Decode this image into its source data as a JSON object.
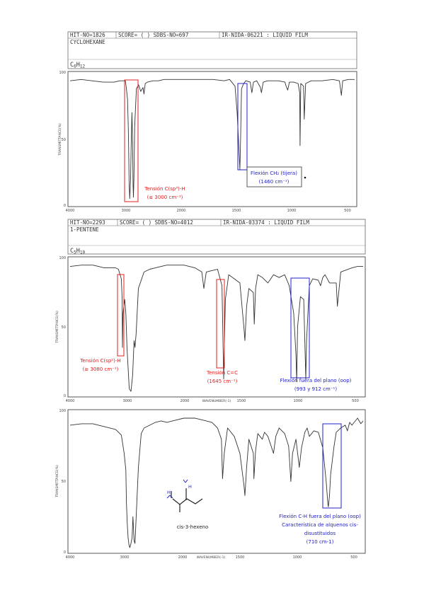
{
  "panels": [
    {
      "header": {
        "hit_no": "HIT-NO=1826",
        "score": "SCORE= ( ) SDBS-NO=697",
        "ir_no": "IR-NIDA-06221 : LIQUID FILM",
        "compound": "CYCLOHEXANE",
        "formula": "C6H12",
        "formula_main": "C",
        "formula_sub1": "6",
        "formula_h": "H",
        "formula_sub2": "12"
      },
      "y_ticks": [
        "100",
        "50",
        "0"
      ],
      "x_ticks": [
        "4000",
        "3000",
        "2000",
        "1500",
        "1000",
        "500"
      ],
      "ylabel": "TRANSMITTANCE(%)",
      "xlabel": "",
      "annotations": [
        {
          "lines": [
            "Tensión C(sp³)-H",
            "(≤ 3000 cm⁻¹)"
          ],
          "color": "#e02020"
        },
        {
          "lines": [
            "Flexión CH₂ (tijera)",
            "(1460 cm⁻¹)"
          ],
          "color": "#2020c8"
        }
      ]
    },
    {
      "header": {
        "hit_no": "HIT-NO=2293",
        "score": "SCORE= ( ) SDBS-NO=4012",
        "ir_no": "IR-NIDA-03374 : LIQUID FILM",
        "compound": "1-PENTENE",
        "formula": "C5H10",
        "formula_main": "C",
        "formula_sub1": "5",
        "formula_h": "H",
        "formula_sub2": "10"
      },
      "y_ticks": [
        "100",
        "50",
        "0"
      ],
      "x_ticks": [
        "4000",
        "3000",
        "2000",
        "1500",
        "1000",
        "500"
      ],
      "ylabel": "TRANSMITTANCE(%)",
      "xlabel": "WAVENUMBER(-1)",
      "annotations": [
        {
          "lines": [
            "Tensión C(sp²)-H",
            "(≥ 3080 cm⁻¹)"
          ],
          "color": "#e02020"
        },
        {
          "lines": [
            "Tensión C=C",
            "(1645 cm⁻¹)"
          ],
          "color": "#e02020"
        },
        {
          "lines": [
            "Flexión fuera del plano (oop)",
            "(993 y 912 cm⁻¹)"
          ],
          "color": "#2020c8"
        }
      ]
    },
    {
      "y_ticks": [
        "100",
        "50",
        "0"
      ],
      "x_ticks": [
        "4000",
        "3000",
        "2000",
        "1500",
        "1000",
        "500"
      ],
      "ylabel": "TRANSMITTANCE(%)",
      "xlabel": "WAVENUMBER(-1)",
      "molecule_label": "cis-3-hexeno",
      "annotations": [
        {
          "lines": [
            "Flexión C-H fuera del plano (oop)",
            "Característica de alquenos cis-",
            "disustituidos",
            "(710 cm-1)"
          ],
          "color": "#2020c8"
        }
      ]
    }
  ],
  "colors": {
    "trace": "#333333",
    "red_box": "#e02020",
    "blue_box": "#2020c8",
    "frame": "#555555"
  },
  "chart_data": [
    {
      "type": "line",
      "title": "CYCLOHEXANE",
      "xlabel": "",
      "ylabel": "TRANSMITTANCE(%)",
      "x_reversed": true,
      "xlim": [
        4000,
        400
      ],
      "ylim": [
        0,
        100
      ],
      "x_ticks": [
        4000,
        3000,
        2000,
        1500,
        1000,
        500
      ],
      "y_ticks": [
        0,
        50,
        100
      ],
      "series": [
        {
          "x": [
            4000,
            3800,
            3600,
            3400,
            3200,
            3100,
            3000,
            2980,
            2960,
            2945,
            2930,
            2920,
            2905,
            2895,
            2880,
            2870,
            2860,
            2853,
            2845,
            2830,
            2800,
            2760,
            2720,
            2680,
            2662,
            2640,
            2600,
            2500,
            2400,
            2300,
            2200,
            2100,
            2000,
            1900,
            1800,
            1700,
            1600,
            1550,
            1500,
            1480,
            1465,
            1455,
            1448,
            1440,
            1420,
            1400,
            1360,
            1345,
            1330,
            1300,
            1266,
            1257,
            1240,
            1200,
            1100,
            1040,
            1030,
            1015,
            1000,
            960,
            920,
            905,
            902,
            895,
            870,
            863,
            850,
            800,
            700,
            600,
            540,
            522,
            510,
            460,
            400
          ],
          "y": [
            94,
            95,
            94,
            93,
            93,
            94,
            94,
            88,
            80,
            55,
            15,
            5,
            20,
            45,
            70,
            50,
            15,
            6,
            20,
            60,
            88,
            91,
            86,
            89,
            84,
            92,
            93,
            94,
            94,
            95,
            95,
            95,
            95,
            95,
            95,
            95,
            94,
            95,
            90,
            70,
            45,
            27,
            50,
            88,
            92,
            94,
            93,
            85,
            93,
            94,
            89,
            85,
            93,
            94,
            94,
            93,
            90,
            87,
            93,
            93,
            92,
            85,
            45,
            92,
            90,
            65,
            92,
            94,
            94,
            95,
            94,
            83,
            94,
            95,
            95
          ]
        }
      ]
    },
    {
      "type": "line",
      "title": "1-PENTENE",
      "xlabel": "WAVENUMBER(-1)",
      "ylabel": "TRANSMITTANCE(%)",
      "x_reversed": true,
      "xlim": [
        4000,
        400
      ],
      "ylim": [
        0,
        100
      ],
      "x_ticks": [
        4000,
        3000,
        2000,
        1500,
        1000,
        500
      ],
      "y_ticks": [
        0,
        50,
        100
      ],
      "series": [
        {
          "x": [
            4000,
            3800,
            3600,
            3500,
            3400,
            3300,
            3200,
            3150,
            3100,
            3085,
            3080,
            3070,
            3040,
            3020,
            3000,
            2980,
            2960,
            2930,
            2900,
            2875,
            2860,
            2840,
            2800,
            2700,
            2600,
            2500,
            2400,
            2300,
            2200,
            2100,
            2000,
            1900,
            1840,
            1822,
            1800,
            1700,
            1660,
            1645,
            1630,
            1600,
            1500,
            1465,
            1455,
            1440,
            1420,
            1380,
            1372,
            1360,
            1340,
            1300,
            1250,
            1200,
            1150,
            1100,
            1060,
            1040,
            1020,
            1000,
            993,
            985,
            960,
            930,
            912,
            905,
            880,
            850,
            800,
            780,
            760,
            740,
            700,
            640,
            630,
            600,
            500,
            450,
            400
          ],
          "y": [
            94,
            95,
            95,
            94,
            93,
            93,
            93,
            92,
            85,
            70,
            35,
            60,
            70,
            60,
            35,
            20,
            5,
            3,
            15,
            40,
            35,
            45,
            78,
            90,
            92,
            93,
            94,
            95,
            95,
            95,
            95,
            93,
            90,
            78,
            90,
            92,
            80,
            12,
            70,
            88,
            82,
            50,
            40,
            65,
            78,
            75,
            52,
            78,
            88,
            86,
            82,
            88,
            86,
            88,
            80,
            70,
            60,
            30,
            10,
            50,
            72,
            70,
            12,
            40,
            80,
            85,
            84,
            80,
            86,
            88,
            82,
            82,
            65,
            90,
            93,
            94,
            94
          ]
        }
      ]
    },
    {
      "type": "line",
      "title": "",
      "xlabel": "WAVENUMBER(-1)",
      "ylabel": "TRANSMITTANCE(%)",
      "x_reversed": true,
      "xlim": [
        4000,
        400
      ],
      "ylim": [
        0,
        100
      ],
      "x_ticks": [
        4000,
        3000,
        2000,
        1500,
        1000,
        500
      ],
      "y_ticks": [
        0,
        50,
        100
      ],
      "series": [
        {
          "x": [
            4000,
            3800,
            3600,
            3500,
            3400,
            3300,
            3200,
            3100,
            3050,
            3020,
            3010,
            2995,
            2980,
            2965,
            2950,
            2930,
            2910,
            2895,
            2875,
            2860,
            2850,
            2800,
            2750,
            2700,
            2600,
            2500,
            2400,
            2300,
            2200,
            2100,
            2000,
            1900,
            1850,
            1800,
            1750,
            1700,
            1665,
            1655,
            1640,
            1610,
            1550,
            1500,
            1465,
            1455,
            1440,
            1420,
            1380,
            1375,
            1360,
            1340,
            1300,
            1280,
            1250,
            1200,
            1180,
            1150,
            1100,
            1065,
            1045,
            1030,
            1000,
            970,
            950,
            920,
            900,
            880,
            840,
            800,
            760,
            730,
            715,
            710,
            700,
            690,
            660,
            640,
            600,
            560,
            540,
            520,
            500,
            450,
            420,
            400
          ],
          "y": [
            90,
            91,
            91,
            90,
            89,
            88,
            87,
            83,
            70,
            58,
            35,
            20,
            10,
            5,
            3,
            6,
            10,
            25,
            8,
            6,
            15,
            60,
            84,
            88,
            90,
            92,
            93,
            92,
            93,
            94,
            95,
            95,
            94,
            93,
            92,
            88,
            80,
            52,
            70,
            88,
            82,
            70,
            48,
            40,
            60,
            80,
            70,
            52,
            72,
            84,
            80,
            85,
            82,
            70,
            82,
            88,
            84,
            75,
            50,
            70,
            80,
            60,
            74,
            85,
            88,
            82,
            86,
            85,
            74,
            50,
            34,
            32,
            40,
            55,
            75,
            85,
            88,
            90,
            86,
            92,
            90,
            95,
            91,
            93
          ]
        }
      ]
    }
  ]
}
